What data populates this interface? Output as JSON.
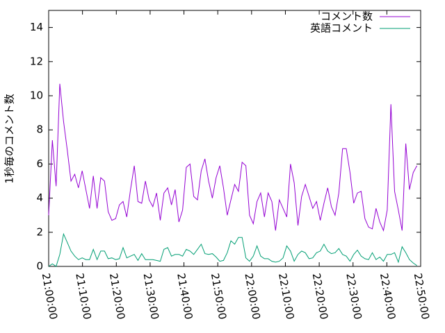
{
  "chart_data": {
    "type": "line",
    "ylabel": "1秒毎のコメント数",
    "x": [
      "21:00:00",
      "21:01:06",
      "21:02:12",
      "21:03:18",
      "21:04:24",
      "21:05:30",
      "21:06:36",
      "21:07:42",
      "21:08:48",
      "21:09:54",
      "21:11:00",
      "21:12:06",
      "21:13:12",
      "21:14:18",
      "21:15:24",
      "21:16:30",
      "21:17:36",
      "21:18:42",
      "21:19:48",
      "21:20:54",
      "21:22:00",
      "21:23:06",
      "21:24:12",
      "21:25:18",
      "21:26:24",
      "21:27:30",
      "21:28:36",
      "21:29:42",
      "21:30:48",
      "21:31:54",
      "21:33:00",
      "21:34:06",
      "21:35:12",
      "21:36:18",
      "21:37:24",
      "21:38:30",
      "21:39:36",
      "21:40:42",
      "21:41:48",
      "21:42:54",
      "21:44:00",
      "21:45:06",
      "21:46:12",
      "21:47:18",
      "21:48:24",
      "21:49:30",
      "21:50:36",
      "21:51:42",
      "21:52:48",
      "21:53:54",
      "21:55:00",
      "21:56:06",
      "21:57:12",
      "21:58:18",
      "21:59:24",
      "22:00:30",
      "22:01:36",
      "22:02:42",
      "22:03:48",
      "22:04:54",
      "22:06:00",
      "22:07:06",
      "22:08:12",
      "22:09:18",
      "22:10:24",
      "22:11:30",
      "22:12:36",
      "22:13:42",
      "22:14:48",
      "22:15:54",
      "22:17:00",
      "22:18:06",
      "22:19:12",
      "22:20:18",
      "22:21:24",
      "22:22:30",
      "22:23:36",
      "22:24:42",
      "22:25:48",
      "22:26:54",
      "22:28:00",
      "22:29:06",
      "22:30:12",
      "22:31:18",
      "22:32:24",
      "22:33:30",
      "22:34:36",
      "22:35:42",
      "22:36:48",
      "22:37:54",
      "22:39:00",
      "22:40:06",
      "22:41:12",
      "22:42:18",
      "22:43:24",
      "22:44:30",
      "22:45:36",
      "22:46:42",
      "22:47:48",
      "22:48:54"
    ],
    "series": [
      {
        "name": "コメント数",
        "color": "#9400d3",
        "values": [
          3.0,
          7.4,
          4.7,
          10.7,
          8.5,
          6.8,
          5.0,
          5.4,
          4.6,
          5.6,
          4.5,
          3.4,
          5.3,
          3.4,
          5.2,
          5.0,
          3.2,
          2.7,
          2.8,
          3.6,
          3.8,
          2.9,
          4.5,
          5.9,
          3.8,
          3.7,
          5.0,
          3.9,
          3.5,
          4.3,
          2.7,
          4.3,
          4.6,
          3.6,
          4.5,
          2.6,
          3.3,
          5.8,
          6.0,
          4.1,
          3.9,
          5.6,
          6.3,
          5.0,
          4.0,
          5.2,
          5.9,
          4.6,
          3.0,
          3.9,
          4.8,
          4.4,
          6.1,
          5.9,
          3.0,
          2.5,
          3.8,
          4.3,
          2.9,
          4.3,
          3.8,
          2.1,
          3.9,
          3.4,
          2.9,
          6.0,
          4.9,
          2.4,
          4.1,
          4.8,
          4.1,
          3.4,
          3.8,
          2.7,
          3.7,
          4.6,
          3.5,
          3.0,
          4.3,
          6.9,
          6.9,
          5.5,
          3.7,
          4.3,
          4.4,
          2.8,
          2.3,
          2.2,
          3.4,
          2.6,
          2.1,
          3.3,
          9.5,
          4.4,
          3.3,
          2.1,
          7.2,
          4.5,
          5.5,
          5.9
        ]
      },
      {
        "name": "英語コメント",
        "color": "#009e73",
        "values": [
          0,
          0.15,
          0,
          0.7,
          1.9,
          1.4,
          0.9,
          0.6,
          0.4,
          0.5,
          0.4,
          0.4,
          1.0,
          0.4,
          0.9,
          0.9,
          0.45,
          0.5,
          0.4,
          0.45,
          1.1,
          0.5,
          0.6,
          0.7,
          0.35,
          0.75,
          0.4,
          0.4,
          0.4,
          0.35,
          0.3,
          1.0,
          1.1,
          0.6,
          0.7,
          0.7,
          0.6,
          1.0,
          0.9,
          0.7,
          1.0,
          1.3,
          0.75,
          0.7,
          0.75,
          0.55,
          0.3,
          0.35,
          0.8,
          1.5,
          1.3,
          1.7,
          1.7,
          0.5,
          0.3,
          0.6,
          1.2,
          0.6,
          0.45,
          0.45,
          0.3,
          0.25,
          0.3,
          0.5,
          1.2,
          0.9,
          0.3,
          0.7,
          0.9,
          0.8,
          0.45,
          0.5,
          0.8,
          0.9,
          1.3,
          0.9,
          0.75,
          0.8,
          1.05,
          0.7,
          0.6,
          0.3,
          0.7,
          0.95,
          0.6,
          0.45,
          0.4,
          0.8,
          0.4,
          0.55,
          0.3,
          0.7,
          0.7,
          0.8,
          0.25,
          1.15,
          0.8,
          0.4,
          0.2,
          0.05
        ]
      }
    ],
    "xlim": [
      "21:00:00",
      "22:50:00"
    ],
    "xticks": [
      "21:00:00",
      "21:10:00",
      "21:20:00",
      "21:30:00",
      "21:40:00",
      "21:50:00",
      "22:00:00",
      "22:10:00",
      "22:20:00",
      "22:30:00",
      "22:40:00",
      "22:50:00"
    ],
    "ylim": [
      0,
      15
    ],
    "yticks": [
      0,
      2,
      4,
      6,
      8,
      10,
      12,
      14
    ],
    "legend": "top-right"
  }
}
